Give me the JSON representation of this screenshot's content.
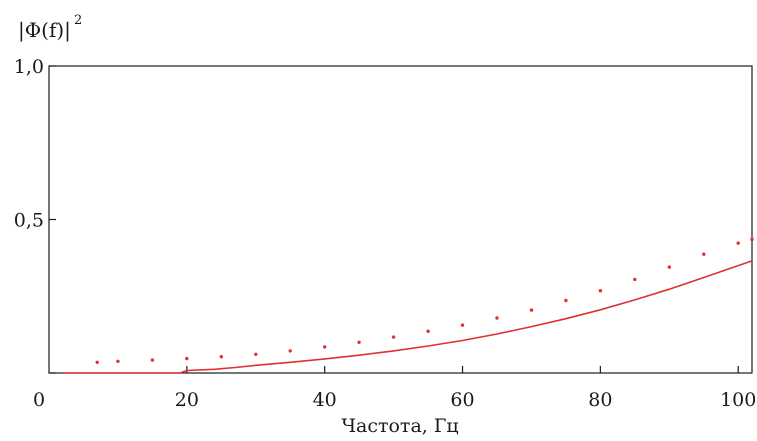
{
  "chart_data": {
    "type": "scatter",
    "title": "",
    "ylabel": "|Φ(f)|",
    "ylabel_power": "2",
    "xlabel": "Частота, Гц",
    "xlim": [
      0,
      102
    ],
    "ylim": [
      0,
      1.0
    ],
    "x_ticks": [
      {
        "value": 0,
        "label": "0"
      },
      {
        "value": 20,
        "label": "20"
      },
      {
        "value": 40,
        "label": "40"
      },
      {
        "value": 60,
        "label": "60"
      },
      {
        "value": 80,
        "label": "80"
      },
      {
        "value": 100,
        "label": "100"
      }
    ],
    "y_ticks": [
      {
        "value": 0,
        "label": ""
      },
      {
        "value": 0.5,
        "label": "0,5"
      },
      {
        "value": 1.0,
        "label": "1,0"
      }
    ],
    "grid": false,
    "color": "#e03030",
    "series": [
      {
        "style": "dots",
        "x": [
          7,
          10,
          15,
          20,
          25,
          30,
          35,
          40,
          45,
          50,
          55,
          60,
          65,
          70,
          75,
          80,
          85,
          90,
          95,
          100,
          102
        ],
        "y": [
          0.035,
          0.038,
          0.042,
          0.047,
          0.053,
          0.061,
          0.072,
          0.085,
          0.1,
          0.117,
          0.136,
          0.156,
          0.179,
          0.205,
          0.236,
          0.268,
          0.305,
          0.345,
          0.387,
          0.423,
          0.435
        ]
      },
      {
        "style": "line",
        "x": [
          2,
          11,
          19,
          20,
          24,
          27,
          30,
          35,
          40,
          45,
          50,
          55,
          60,
          65,
          70,
          75,
          80,
          85,
          90,
          95,
          100,
          102
        ],
        "y": [
          0.0,
          0.0,
          0.0,
          0.008,
          0.012,
          0.018,
          0.025,
          0.035,
          0.046,
          0.058,
          0.072,
          0.088,
          0.106,
          0.127,
          0.151,
          0.177,
          0.206,
          0.238,
          0.273,
          0.311,
          0.35,
          0.365
        ]
      }
    ]
  }
}
